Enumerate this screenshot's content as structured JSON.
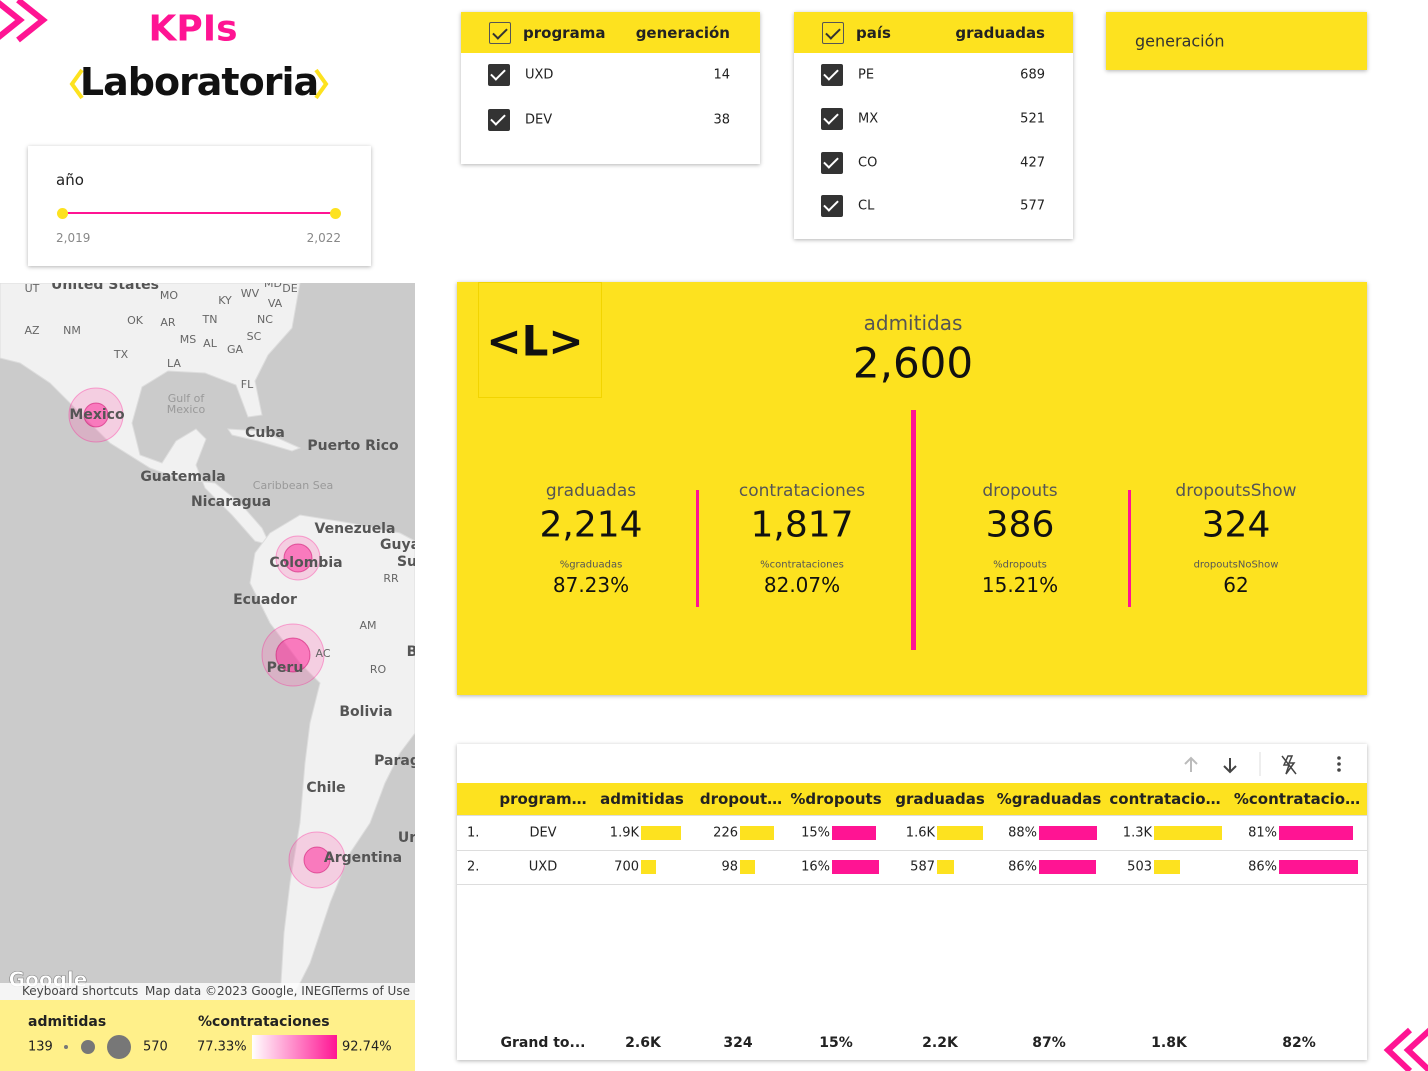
{
  "header": {
    "title": "KPIs",
    "logo": "Laboratoria"
  },
  "year_slider": {
    "label": "año",
    "min_label": "2,019",
    "max_label": "2,022"
  },
  "program_filter": {
    "columns": [
      "programa",
      "generación"
    ],
    "rows": [
      [
        "UXD",
        "14"
      ],
      [
        "DEV",
        "38"
      ]
    ]
  },
  "country_filter": {
    "columns": [
      "país",
      "graduadas"
    ],
    "rows": [
      [
        "PE",
        "689"
      ],
      [
        "MX",
        "521"
      ],
      [
        "CO",
        "427"
      ],
      [
        "CL",
        "577"
      ]
    ]
  },
  "generation_dropdown": {
    "label": "generación"
  },
  "map": {
    "labels": [
      "United States",
      "UT",
      "MO",
      "KY",
      "WV",
      "MD",
      "DE",
      "VA",
      "AZ",
      "NM",
      "OK",
      "AR",
      "TN",
      "NC",
      "MS",
      "AL",
      "GA",
      "SC",
      "TX",
      "LA",
      "FL",
      "Gulf of",
      "Mexico",
      "Mexico",
      "Cuba",
      "Puerto Rico",
      "Guatemala",
      "Caribbean Sea",
      "Nicaragua",
      "Venezuela",
      "Guya",
      "Su",
      "Colombia",
      "RR",
      "Ecuador",
      "AM",
      "AC",
      "Peru",
      "RO",
      "B",
      "Bolivia",
      "Parag",
      "Chile",
      "Ur",
      "Argentina",
      "Google"
    ],
    "attribution": [
      "Keyboard shortcuts",
      "Map data ©2023 Google, INEGI",
      "Terms of Use"
    ],
    "legend": {
      "size_title": "admitidas",
      "size_min": "139",
      "size_max": "570",
      "color_title": "%contrataciones",
      "color_min": "77.33%",
      "color_max": "92.74%"
    }
  },
  "scorecard": {
    "logo": "<L>",
    "main": {
      "label": "admitidas",
      "value": "2,600"
    },
    "metrics": [
      {
        "label": "graduadas",
        "value": "2,214",
        "sub_label": "%graduadas",
        "sub_value": "87.23%"
      },
      {
        "label": "contrataciones",
        "value": "1,817",
        "sub_label": "%contrataciones",
        "sub_value": "82.07%"
      },
      {
        "label": "dropouts",
        "value": "386",
        "sub_label": "%dropouts",
        "sub_value": "15.21%"
      },
      {
        "label": "dropoutsShow",
        "value": "324",
        "sub_label": "dropoutsNoShow",
        "sub_value": "62"
      }
    ]
  },
  "table": {
    "columns": [
      "program…",
      "admitidas",
      "dropout…",
      "%dropouts",
      "graduadas",
      "%graduadas",
      "contratacio…",
      "%contratacio…"
    ],
    "rows": [
      [
        "1.",
        "DEV",
        "1.9K",
        "226",
        "15%",
        "1.6K",
        "88%",
        "1.3K",
        "81%"
      ],
      [
        "2.",
        "UXD",
        "700",
        "98",
        "16%",
        "587",
        "86%",
        "503",
        "86%"
      ]
    ],
    "total": [
      "Grand to...",
      "2.6K",
      "324",
      "15%",
      "2.2K",
      "87%",
      "1.8K",
      "82%"
    ]
  }
}
